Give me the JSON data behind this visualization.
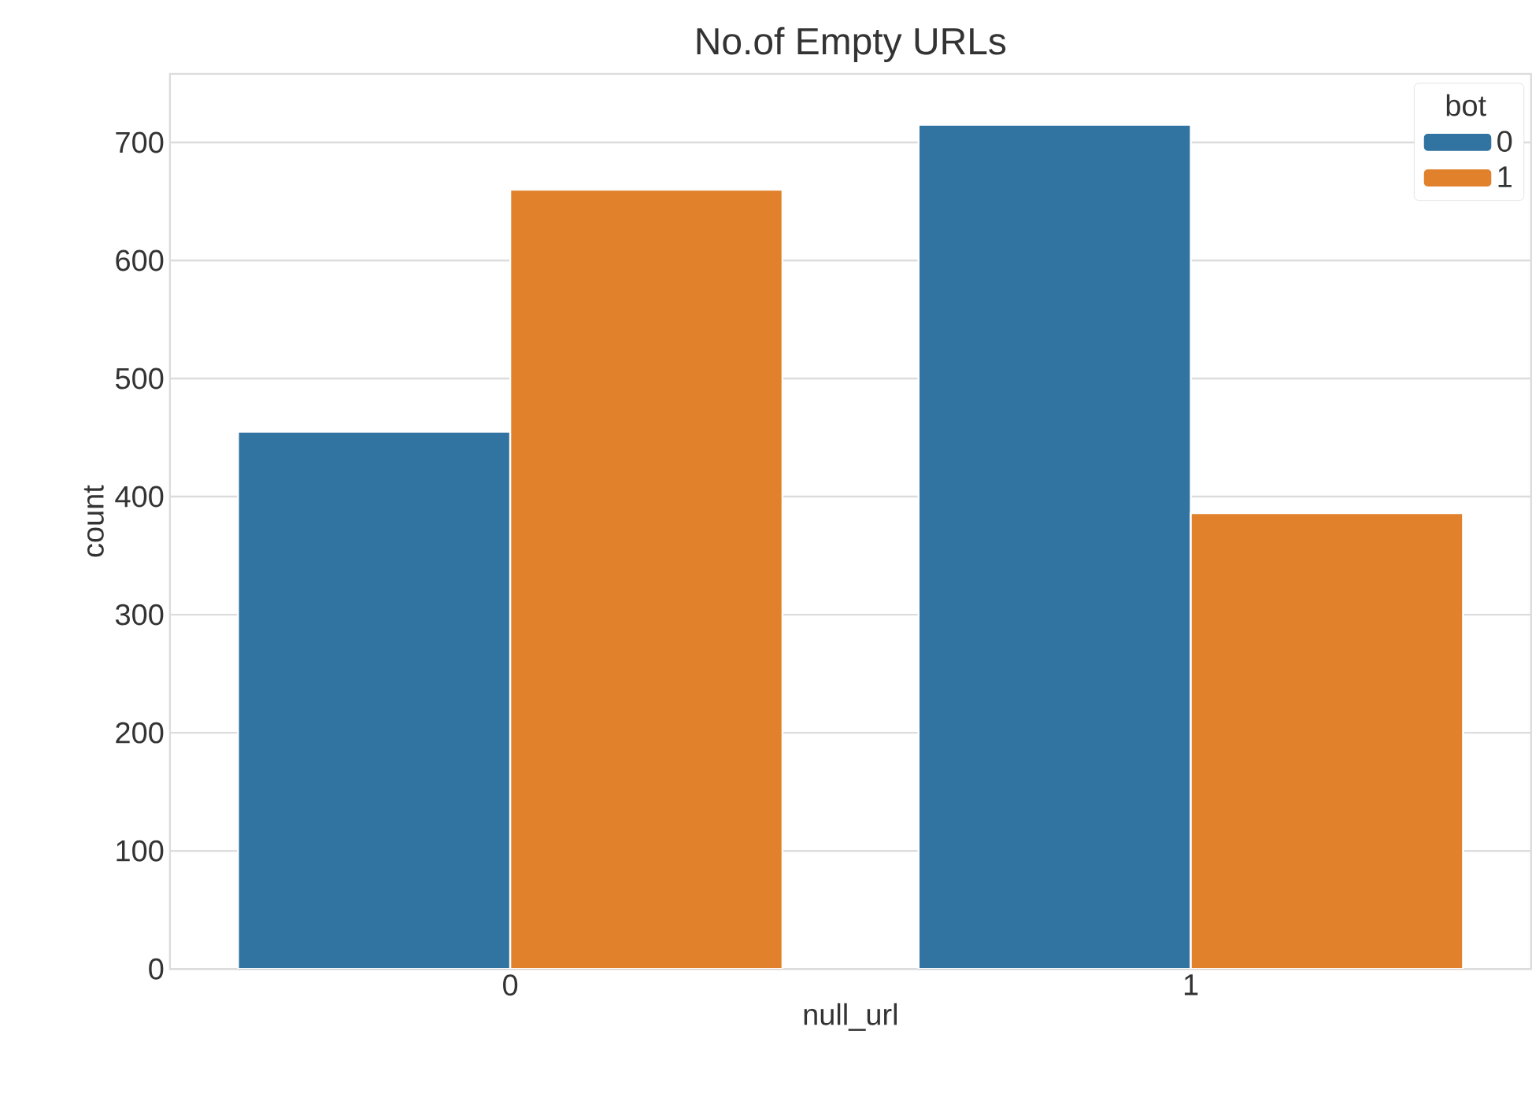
{
  "chart_data": {
    "type": "bar",
    "title": "No.of Empty URLs",
    "xlabel": "null_url",
    "ylabel": "count",
    "categories": [
      "0",
      "1"
    ],
    "legend_title": "bot",
    "series": [
      {
        "name": "0",
        "color": "#3274a1",
        "values": [
          455,
          715
        ]
      },
      {
        "name": "1",
        "color": "#e1812c",
        "values": [
          660,
          386
        ]
      }
    ],
    "ylim": [
      0,
      758
    ],
    "yticks": [
      0,
      100,
      200,
      300,
      400,
      500,
      600,
      700
    ],
    "grid": "y",
    "legend": "top right"
  }
}
